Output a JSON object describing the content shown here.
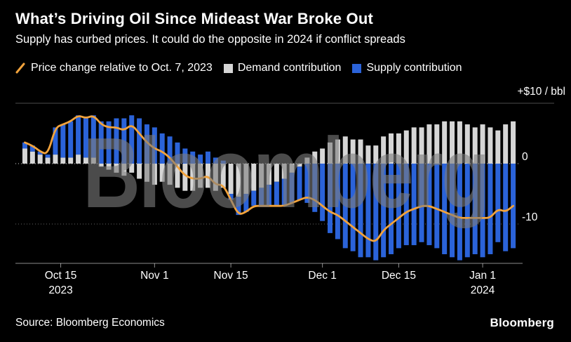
{
  "header": {
    "title": "What’s Driving Oil Since Mideast War Broke Out",
    "subtitle": "Supply has curbed prices. It could do the opposite in 2024 if conflict spreads"
  },
  "legend": [
    {
      "icon": "price-line-legend-icon",
      "type": "line",
      "color": "#f2a33c",
      "label": "Price change relative to Oct. 7, 2023"
    },
    {
      "icon": "demand-swatch-icon",
      "type": "swatch",
      "color": "#d6d6d6",
      "label": "Demand contribution"
    },
    {
      "icon": "supply-swatch-icon",
      "type": "swatch",
      "color": "#2b63d9",
      "label": "Supply contribution"
    }
  ],
  "watermark": "Bloomberg",
  "footer": {
    "source": "Source: Bloomberg Economics",
    "brand": "Bloomberg"
  },
  "chart_data": {
    "type": "bar",
    "subtype": "stacked-bars-with-line-overlay",
    "title": "What’s Driving Oil Since Mideast War Broke Out",
    "ylabel": "+$10 / bbl",
    "unit": "USD per barrel, change relative to Oct. 7, 2023",
    "grid": "horizontal-dotted",
    "legend_position": "top",
    "ylim": [
      -16.5,
      11
    ],
    "x": [
      "Oct 9",
      "Oct 10",
      "Oct 11",
      "Oct 12",
      "Oct 13",
      "Oct 16",
      "Oct 17",
      "Oct 18",
      "Oct 19",
      "Oct 20",
      "Oct 23",
      "Oct 24",
      "Oct 25",
      "Oct 26",
      "Oct 27",
      "Oct 30",
      "Oct 31",
      "Nov 1",
      "Nov 2",
      "Nov 3",
      "Nov 6",
      "Nov 7",
      "Nov 8",
      "Nov 9",
      "Nov 10",
      "Nov 13",
      "Nov 14",
      "Nov 15",
      "Nov 16",
      "Nov 17",
      "Nov 20",
      "Nov 21",
      "Nov 22",
      "Nov 23",
      "Nov 24",
      "Nov 27",
      "Nov 28",
      "Nov 29",
      "Nov 30",
      "Dec 1",
      "Dec 4",
      "Dec 5",
      "Dec 6",
      "Dec 7",
      "Dec 8",
      "Dec 11",
      "Dec 12",
      "Dec 13",
      "Dec 14",
      "Dec 15",
      "Dec 18",
      "Dec 19",
      "Dec 20",
      "Dec 21",
      "Dec 22",
      "Dec 25",
      "Dec 26",
      "Dec 27",
      "Dec 28",
      "Dec 29",
      "Jan 1",
      "Jan 2",
      "Jan 3",
      "Jan 4",
      "Jan 5"
    ],
    "series": [
      {
        "name": "Demand contribution",
        "type": "bar",
        "stack": true,
        "color": "#d6d6d6",
        "values": [
          2.5,
          2.0,
          1.5,
          1.0,
          1.5,
          1.0,
          1.0,
          1.5,
          1.0,
          1.0,
          -0.5,
          -1.0,
          -1.5,
          -2.0,
          -1.5,
          -2.5,
          -3.0,
          -3.5,
          -3.0,
          -3.5,
          -4.0,
          -4.5,
          -4.5,
          -4.0,
          -4.0,
          -4.5,
          -4.0,
          -5.0,
          -5.5,
          -5.0,
          -4.5,
          -4.0,
          -3.5,
          -3.0,
          -2.5,
          -1.5,
          -0.5,
          1.0,
          2.0,
          2.5,
          3.5,
          4.0,
          4.5,
          4.0,
          4.0,
          3.0,
          3.0,
          4.5,
          5.0,
          5.0,
          5.5,
          6.0,
          6.0,
          6.5,
          6.5,
          7.0,
          7.0,
          7.0,
          6.5,
          6.0,
          6.5,
          6.0,
          5.5,
          6.5,
          7.0
        ]
      },
      {
        "name": "Supply contribution",
        "type": "bar",
        "stack": true,
        "color": "#2b63d9",
        "values": [
          1.0,
          1.0,
          0.5,
          0.5,
          4.5,
          5.5,
          6.0,
          6.5,
          6.5,
          7.0,
          7.0,
          7.0,
          7.5,
          7.5,
          8.0,
          7.5,
          6.5,
          6.0,
          5.0,
          4.5,
          3.5,
          2.5,
          2.0,
          1.5,
          2.0,
          1.0,
          0.5,
          -1.0,
          -3.0,
          -3.0,
          -2.5,
          -3.0,
          -3.5,
          -4.0,
          -4.5,
          -5.0,
          -5.5,
          -6.5,
          -8.0,
          -9.5,
          -11.5,
          -12.5,
          -14.0,
          -14.5,
          -15.5,
          -15.5,
          -16.0,
          -15.5,
          -15.0,
          -14.0,
          -13.5,
          -13.5,
          -13.0,
          -13.5,
          -14.0,
          -15.0,
          -15.5,
          -16.0,
          -15.5,
          -15.0,
          -15.5,
          -15.0,
          -13.0,
          -14.5,
          -14.0
        ]
      },
      {
        "name": "Price change relative to Oct. 7, 2023",
        "type": "line",
        "color": "#f2a33c",
        "values": [
          3.5,
          3.0,
          2.0,
          1.5,
          6.0,
          6.5,
          7.0,
          8.0,
          7.5,
          8.0,
          6.5,
          6.0,
          6.0,
          5.5,
          6.5,
          5.0,
          3.5,
          2.5,
          2.0,
          1.0,
          -0.5,
          -2.0,
          -2.5,
          -2.5,
          -2.0,
          -3.5,
          -3.5,
          -6.0,
          -8.5,
          -8.0,
          -7.0,
          -7.0,
          -7.0,
          -7.0,
          -7.0,
          -6.5,
          -6.0,
          -5.5,
          -6.0,
          -7.0,
          -8.0,
          -8.5,
          -9.5,
          -10.5,
          -11.5,
          -12.5,
          -13.0,
          -11.0,
          -10.0,
          -9.0,
          -8.0,
          -7.5,
          -7.0,
          -7.0,
          -7.5,
          -8.0,
          -8.5,
          -9.0,
          -9.0,
          -9.0,
          -9.0,
          -9.0,
          -7.5,
          -8.0,
          -7.0
        ]
      }
    ],
    "x_ticks": [
      {
        "label": "Oct 15",
        "sublabel": "2023",
        "index": 4.7
      },
      {
        "label": "Nov 1",
        "index": 17
      },
      {
        "label": "Nov 15",
        "index": 27
      },
      {
        "label": "Dec 1",
        "index": 39
      },
      {
        "label": "Dec 15",
        "index": 49
      },
      {
        "label": "Jan 1",
        "sublabel": "2024",
        "index": 60
      }
    ],
    "y_ticks": [
      {
        "label": "+$10 / bbl",
        "value": 10,
        "line": "solid",
        "position": "above-right"
      },
      {
        "label": "0",
        "value": 0,
        "line": "dotted"
      },
      {
        "label": "-10",
        "value": -10,
        "line": "dotted"
      }
    ]
  }
}
